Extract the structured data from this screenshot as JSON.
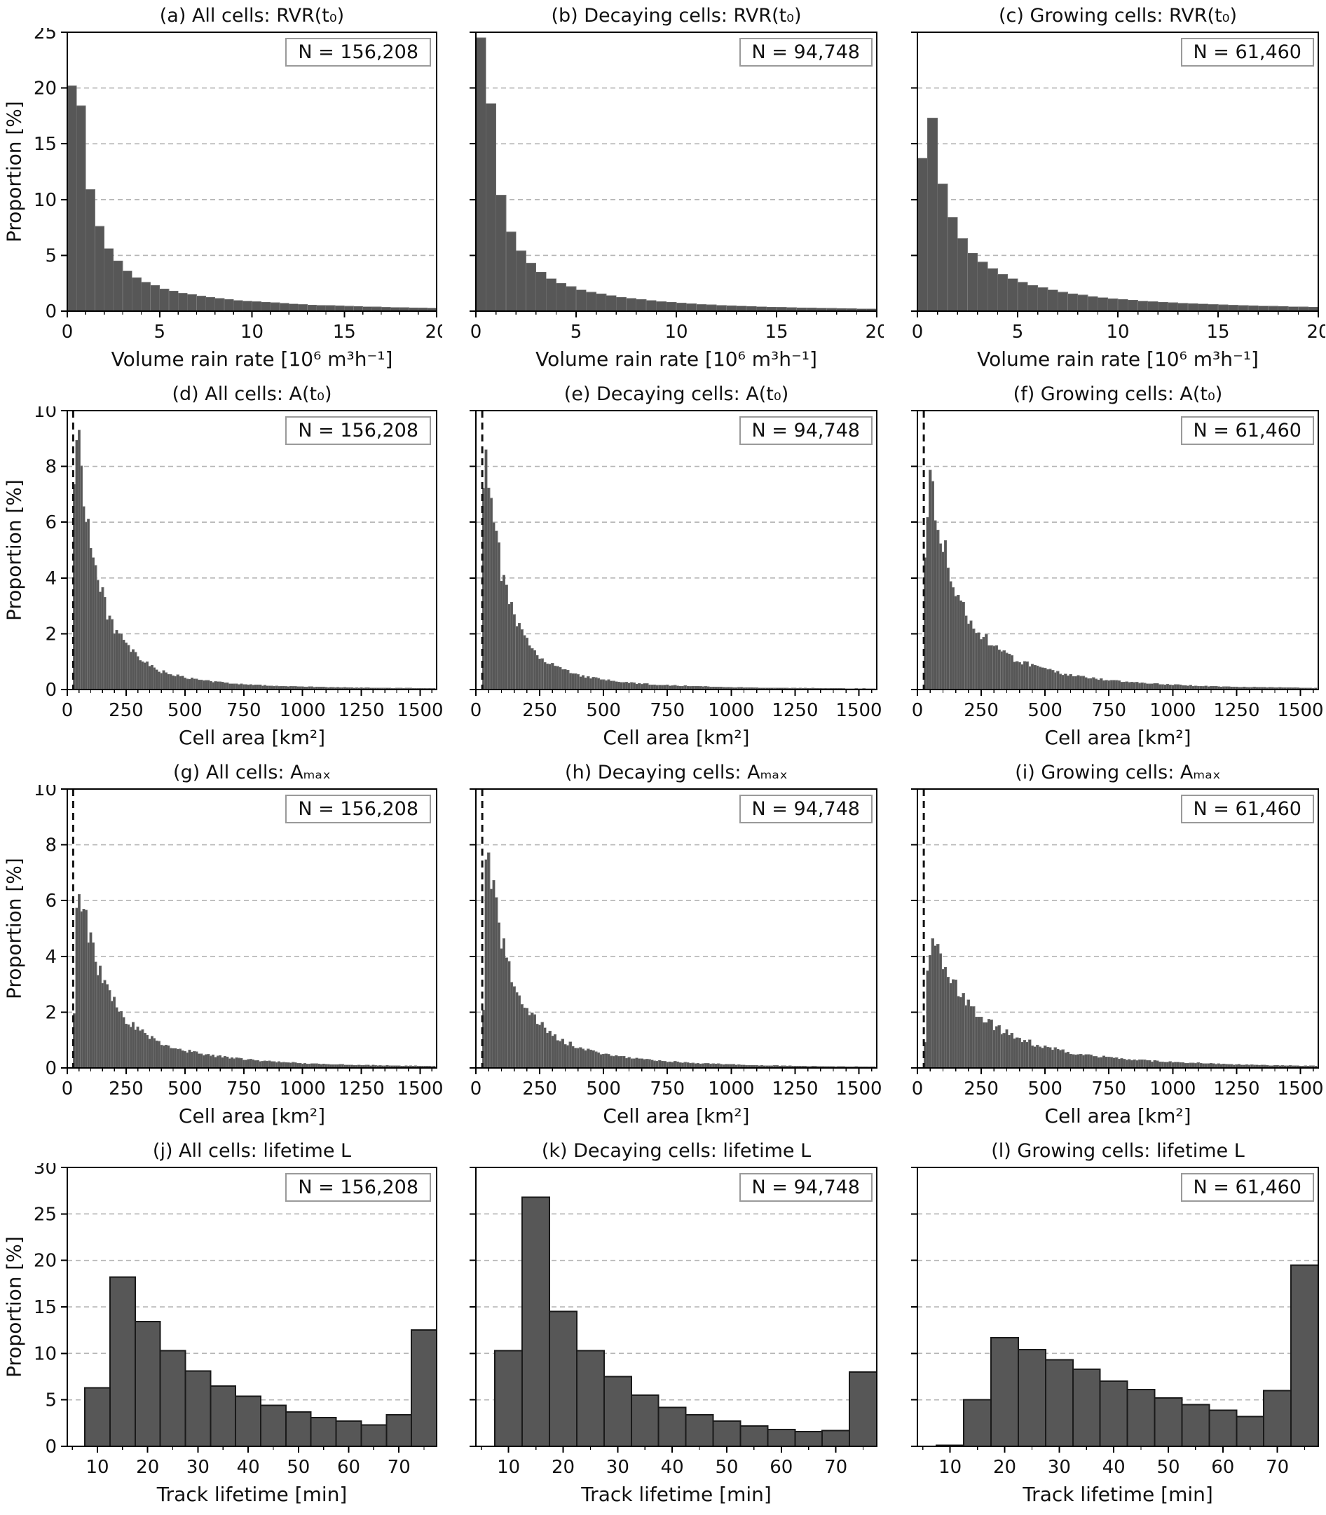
{
  "colors": {
    "bar": "#575757",
    "bar_separator": "#777777",
    "bar_edge": "#1a1a1a",
    "grid": "#b4b4b4",
    "spine": "#000000",
    "vline": "#111111",
    "nbox_border": "#9a9a9a",
    "text": "#111111"
  },
  "chart_data": [
    {
      "id": "a",
      "type": "bar",
      "title": "(a) All cells: RVR(t₀)",
      "n_label": "N = 156,208",
      "xlabel": "Volume rain rate [10⁶ m³h⁻¹]",
      "ylabel": "Proportion [%]",
      "x": {
        "min": 0,
        "max": 20,
        "ticks": [
          0,
          5,
          10,
          15,
          20
        ],
        "minor": 1
      },
      "y": {
        "min": 0,
        "max": 25,
        "ticks": [
          0,
          5,
          10,
          15,
          20,
          25
        ],
        "grid": [
          5,
          10,
          15,
          20
        ]
      },
      "bins": {
        "start": 0,
        "width": 0.5
      },
      "values": [
        20.2,
        18.4,
        10.9,
        7.6,
        5.6,
        4.5,
        3.6,
        3.0,
        2.6,
        2.3,
        2.0,
        1.8,
        1.6,
        1.5,
        1.35,
        1.25,
        1.15,
        1.05,
        0.95,
        0.9,
        0.85,
        0.8,
        0.75,
        0.7,
        0.65,
        0.6,
        0.55,
        0.52,
        0.5,
        0.47,
        0.44,
        0.42,
        0.4,
        0.38,
        0.35,
        0.33,
        0.31,
        0.3,
        0.28,
        0.27
      ],
      "vline": null,
      "bar_edges": false
    },
    {
      "id": "b",
      "type": "bar",
      "title": "(b) Decaying cells: RVR(t₀)",
      "n_label": "N = 94,748",
      "xlabel": "Volume rain rate [10⁶ m³h⁻¹]",
      "ylabel": "",
      "x": {
        "min": 0,
        "max": 20,
        "ticks": [
          0,
          5,
          10,
          15,
          20
        ],
        "minor": 1
      },
      "y": {
        "min": 0,
        "max": 25,
        "ticks": [
          0,
          5,
          10,
          15,
          20,
          25
        ],
        "grid": [
          5,
          10,
          15,
          20
        ]
      },
      "bins": {
        "start": 0,
        "width": 0.5
      },
      "values": [
        24.5,
        18.6,
        10.4,
        7.1,
        5.4,
        4.3,
        3.5,
        2.9,
        2.5,
        2.2,
        1.9,
        1.7,
        1.55,
        1.4,
        1.25,
        1.15,
        1.05,
        0.95,
        0.85,
        0.8,
        0.72,
        0.66,
        0.6,
        0.56,
        0.52,
        0.48,
        0.45,
        0.42,
        0.4,
        0.37,
        0.34,
        0.32,
        0.3,
        0.28,
        0.26,
        0.25,
        0.23,
        0.22,
        0.21,
        0.2
      ],
      "vline": null,
      "bar_edges": false
    },
    {
      "id": "c",
      "type": "bar",
      "title": "(c) Growing cells: RVR(t₀)",
      "n_label": "N = 61,460",
      "xlabel": "Volume rain rate [10⁶ m³h⁻¹]",
      "ylabel": "",
      "x": {
        "min": 0,
        "max": 20,
        "ticks": [
          0,
          5,
          10,
          15,
          20
        ],
        "minor": 1
      },
      "y": {
        "min": 0,
        "max": 25,
        "ticks": [
          0,
          5,
          10,
          15,
          20,
          25
        ],
        "grid": [
          5,
          10,
          15,
          20
        ]
      },
      "bins": {
        "start": 0,
        "width": 0.5
      },
      "values": [
        13.7,
        17.3,
        11.4,
        8.4,
        6.5,
        5.2,
        4.4,
        3.8,
        3.3,
        2.9,
        2.6,
        2.3,
        2.1,
        1.9,
        1.7,
        1.55,
        1.45,
        1.3,
        1.2,
        1.12,
        1.05,
        0.98,
        0.9,
        0.85,
        0.8,
        0.75,
        0.7,
        0.67,
        0.64,
        0.6,
        0.57,
        0.54,
        0.5,
        0.48,
        0.46,
        0.44,
        0.42,
        0.4,
        0.38,
        0.37
      ],
      "vline": null,
      "bar_edges": false
    },
    {
      "id": "d",
      "type": "bar",
      "title": "(d) All cells: A(t₀)",
      "n_label": "N = 156,208",
      "xlabel": "Cell area [km²]",
      "ylabel": "Proportion [%]",
      "x": {
        "min": 0,
        "max": 1570,
        "ticks": [
          0,
          250,
          500,
          750,
          1000,
          1250,
          1500
        ],
        "minor": 50
      },
      "y": {
        "min": 0,
        "max": 10,
        "ticks": [
          0,
          2,
          4,
          6,
          8,
          10
        ],
        "grid": [
          2,
          4,
          6,
          8
        ]
      },
      "bins": {
        "start": 25,
        "width": 10
      },
      "anchors": [
        [
          30,
          7.2
        ],
        [
          40,
          9.3
        ],
        [
          50,
          8.8
        ],
        [
          60,
          8.0
        ],
        [
          75,
          6.9
        ],
        [
          90,
          5.9
        ],
        [
          100,
          5.3
        ],
        [
          125,
          4.1
        ],
        [
          150,
          3.3
        ],
        [
          175,
          2.7
        ],
        [
          200,
          2.2
        ],
        [
          250,
          1.55
        ],
        [
          300,
          1.15
        ],
        [
          350,
          0.85
        ],
        [
          400,
          0.65
        ],
        [
          450,
          0.52
        ],
        [
          500,
          0.42
        ],
        [
          600,
          0.3
        ],
        [
          700,
          0.22
        ],
        [
          800,
          0.16
        ],
        [
          900,
          0.12
        ],
        [
          1000,
          0.1
        ],
        [
          1100,
          0.08
        ],
        [
          1250,
          0.06
        ],
        [
          1400,
          0.05
        ],
        [
          1570,
          0.04
        ]
      ],
      "vline": 25,
      "bar_edges": false
    },
    {
      "id": "e",
      "type": "bar",
      "title": "(e) Decaying cells: A(t₀)",
      "n_label": "N = 94,748",
      "xlabel": "Cell area [km²]",
      "ylabel": "",
      "x": {
        "min": 0,
        "max": 1570,
        "ticks": [
          0,
          250,
          500,
          750,
          1000,
          1250,
          1500
        ],
        "minor": 50
      },
      "y": {
        "min": 0,
        "max": 10,
        "ticks": [
          0,
          2,
          4,
          6,
          8,
          10
        ],
        "grid": [
          2,
          4,
          6,
          8
        ]
      },
      "bins": {
        "start": 25,
        "width": 10
      },
      "anchors": [
        [
          30,
          7.8
        ],
        [
          40,
          8.7
        ],
        [
          50,
          7.9
        ],
        [
          60,
          7.0
        ],
        [
          75,
          5.8
        ],
        [
          90,
          4.8
        ],
        [
          100,
          4.3
        ],
        [
          125,
          3.3
        ],
        [
          150,
          2.6
        ],
        [
          175,
          2.1
        ],
        [
          200,
          1.7
        ],
        [
          250,
          1.2
        ],
        [
          300,
          0.9
        ],
        [
          350,
          0.68
        ],
        [
          400,
          0.52
        ],
        [
          450,
          0.42
        ],
        [
          500,
          0.34
        ],
        [
          600,
          0.24
        ],
        [
          700,
          0.17
        ],
        [
          800,
          0.13
        ],
        [
          900,
          0.1
        ],
        [
          1000,
          0.08
        ],
        [
          1100,
          0.06
        ],
        [
          1250,
          0.05
        ],
        [
          1400,
          0.04
        ],
        [
          1570,
          0.03
        ]
      ],
      "vline": 25,
      "bar_edges": false
    },
    {
      "id": "f",
      "type": "bar",
      "title": "(f) Growing cells: A(t₀)",
      "n_label": "N = 61,460",
      "xlabel": "Cell area [km²]",
      "ylabel": "",
      "x": {
        "min": 0,
        "max": 1570,
        "ticks": [
          0,
          250,
          500,
          750,
          1000,
          1250,
          1500
        ],
        "minor": 50
      },
      "y": {
        "min": 0,
        "max": 10,
        "ticks": [
          0,
          2,
          4,
          6,
          8,
          10
        ],
        "grid": [
          2,
          4,
          6,
          8
        ]
      },
      "bins": {
        "start": 25,
        "width": 10
      },
      "anchors": [
        [
          30,
          4.6
        ],
        [
          40,
          6.6
        ],
        [
          50,
          7.8
        ],
        [
          60,
          7.3
        ],
        [
          75,
          6.5
        ],
        [
          90,
          5.8
        ],
        [
          100,
          5.3
        ],
        [
          125,
          4.3
        ],
        [
          150,
          3.6
        ],
        [
          175,
          3.0
        ],
        [
          200,
          2.6
        ],
        [
          250,
          1.95
        ],
        [
          300,
          1.55
        ],
        [
          350,
          1.25
        ],
        [
          400,
          1.0
        ],
        [
          450,
          0.85
        ],
        [
          500,
          0.7
        ],
        [
          600,
          0.5
        ],
        [
          700,
          0.38
        ],
        [
          800,
          0.28
        ],
        [
          900,
          0.22
        ],
        [
          1000,
          0.17
        ],
        [
          1100,
          0.13
        ],
        [
          1250,
          0.09
        ],
        [
          1400,
          0.07
        ],
        [
          1570,
          0.05
        ]
      ],
      "vline": 25,
      "bar_edges": false
    },
    {
      "id": "g",
      "type": "bar",
      "title": "(g) All cells: Aₘₐₓ",
      "n_label": "N = 156,208",
      "xlabel": "Cell area [km²]",
      "ylabel": "Proportion [%]",
      "x": {
        "min": 0,
        "max": 1570,
        "ticks": [
          0,
          250,
          500,
          750,
          1000,
          1250,
          1500
        ],
        "minor": 50
      },
      "y": {
        "min": 0,
        "max": 10,
        "ticks": [
          0,
          2,
          4,
          6,
          8,
          10
        ],
        "grid": [
          2,
          4,
          6,
          8
        ]
      },
      "bins": {
        "start": 25,
        "width": 10
      },
      "anchors": [
        [
          30,
          1.8
        ],
        [
          40,
          5.3
        ],
        [
          50,
          6.3
        ],
        [
          60,
          6.0
        ],
        [
          75,
          5.4
        ],
        [
          90,
          4.8
        ],
        [
          100,
          4.4
        ],
        [
          125,
          3.7
        ],
        [
          150,
          3.1
        ],
        [
          175,
          2.65
        ],
        [
          200,
          2.3
        ],
        [
          250,
          1.75
        ],
        [
          300,
          1.4
        ],
        [
          350,
          1.12
        ],
        [
          400,
          0.9
        ],
        [
          450,
          0.75
        ],
        [
          500,
          0.63
        ],
        [
          600,
          0.46
        ],
        [
          700,
          0.35
        ],
        [
          800,
          0.27
        ],
        [
          900,
          0.21
        ],
        [
          1000,
          0.16
        ],
        [
          1100,
          0.13
        ],
        [
          1250,
          0.1
        ],
        [
          1400,
          0.08
        ],
        [
          1570,
          0.06
        ]
      ],
      "vline": 25,
      "bar_edges": false
    },
    {
      "id": "h",
      "type": "bar",
      "title": "(h) Decaying cells: Aₘₐₓ",
      "n_label": "N = 94,748",
      "xlabel": "Cell area [km²]",
      "ylabel": "",
      "x": {
        "min": 0,
        "max": 1570,
        "ticks": [
          0,
          250,
          500,
          750,
          1000,
          1250,
          1500
        ],
        "minor": 50
      },
      "y": {
        "min": 0,
        "max": 10,
        "ticks": [
          0,
          2,
          4,
          6,
          8,
          10
        ],
        "grid": [
          2,
          4,
          6,
          8
        ]
      },
      "bins": {
        "start": 25,
        "width": 10
      },
      "anchors": [
        [
          30,
          2.2
        ],
        [
          40,
          7.0
        ],
        [
          50,
          7.5
        ],
        [
          60,
          6.6
        ],
        [
          75,
          5.8
        ],
        [
          90,
          5.0
        ],
        [
          100,
          4.6
        ],
        [
          125,
          3.7
        ],
        [
          150,
          3.0
        ],
        [
          175,
          2.5
        ],
        [
          200,
          2.1
        ],
        [
          250,
          1.55
        ],
        [
          300,
          1.2
        ],
        [
          350,
          0.92
        ],
        [
          400,
          0.73
        ],
        [
          450,
          0.6
        ],
        [
          500,
          0.5
        ],
        [
          600,
          0.36
        ],
        [
          700,
          0.27
        ],
        [
          800,
          0.2
        ],
        [
          900,
          0.15
        ],
        [
          1000,
          0.12
        ],
        [
          1100,
          0.09
        ],
        [
          1250,
          0.07
        ],
        [
          1400,
          0.05
        ],
        [
          1570,
          0.04
        ]
      ],
      "vline": 25,
      "bar_edges": false
    },
    {
      "id": "i",
      "type": "bar",
      "title": "(i) Growing cells: Aₘₐₓ",
      "n_label": "N = 61,460",
      "xlabel": "Cell area [km²]",
      "ylabel": "",
      "x": {
        "min": 0,
        "max": 1570,
        "ticks": [
          0,
          250,
          500,
          750,
          1000,
          1250,
          1500
        ],
        "minor": 50
      },
      "y": {
        "min": 0,
        "max": 10,
        "ticks": [
          0,
          2,
          4,
          6,
          8,
          10
        ],
        "grid": [
          2,
          4,
          6,
          8
        ]
      },
      "bins": {
        "start": 25,
        "width": 10
      },
      "anchors": [
        [
          30,
          1.0
        ],
        [
          40,
          3.3
        ],
        [
          50,
          4.0
        ],
        [
          60,
          4.3
        ],
        [
          75,
          4.25
        ],
        [
          90,
          3.9
        ],
        [
          100,
          3.7
        ],
        [
          125,
          3.3
        ],
        [
          150,
          2.95
        ],
        [
          175,
          2.6
        ],
        [
          200,
          2.3
        ],
        [
          250,
          1.85
        ],
        [
          300,
          1.5
        ],
        [
          350,
          1.25
        ],
        [
          400,
          1.05
        ],
        [
          450,
          0.88
        ],
        [
          500,
          0.74
        ],
        [
          600,
          0.55
        ],
        [
          700,
          0.42
        ],
        [
          800,
          0.33
        ],
        [
          900,
          0.26
        ],
        [
          1000,
          0.21
        ],
        [
          1100,
          0.17
        ],
        [
          1250,
          0.12
        ],
        [
          1400,
          0.09
        ],
        [
          1570,
          0.07
        ]
      ],
      "vline": 25,
      "bar_edges": false
    },
    {
      "id": "j",
      "type": "bar",
      "title": "(j) All cells: lifetime L",
      "n_label": "N = 156,208",
      "xlabel": "Track lifetime [min]",
      "ylabel": "Proportion [%]",
      "x": {
        "min": 4,
        "max": 77.5,
        "ticks": [
          10,
          20,
          30,
          40,
          50,
          60,
          70
        ],
        "minor": 5
      },
      "y": {
        "min": 0,
        "max": 30,
        "ticks": [
          0,
          5,
          10,
          15,
          20,
          25,
          30
        ],
        "grid": [
          5,
          10,
          15,
          20,
          25
        ]
      },
      "bins": {
        "start": 7.5,
        "width": 5
      },
      "values": [
        6.3,
        18.2,
        13.4,
        10.3,
        8.1,
        6.5,
        5.4,
        4.4,
        3.7,
        3.1,
        2.7,
        2.3,
        3.4,
        12.5
      ],
      "vline": null,
      "bar_edges": true
    },
    {
      "id": "k",
      "type": "bar",
      "title": "(k) Decaying cells: lifetime L",
      "n_label": "N = 94,748",
      "xlabel": "Track lifetime [min]",
      "ylabel": "",
      "x": {
        "min": 4,
        "max": 77.5,
        "ticks": [
          10,
          20,
          30,
          40,
          50,
          60,
          70
        ],
        "minor": 5
      },
      "y": {
        "min": 0,
        "max": 30,
        "ticks": [
          0,
          5,
          10,
          15,
          20,
          25,
          30
        ],
        "grid": [
          5,
          10,
          15,
          20,
          25
        ]
      },
      "bins": {
        "start": 7.5,
        "width": 5
      },
      "values": [
        10.3,
        26.8,
        14.5,
        10.3,
        7.5,
        5.5,
        4.2,
        3.4,
        2.7,
        2.2,
        1.8,
        1.6,
        1.7,
        8.0
      ],
      "vline": null,
      "bar_edges": true
    },
    {
      "id": "l",
      "type": "bar",
      "title": "(l) Growing cells: lifetime L",
      "n_label": "N = 61,460",
      "xlabel": "Track lifetime [min]",
      "ylabel": "",
      "x": {
        "min": 4,
        "max": 77.5,
        "ticks": [
          10,
          20,
          30,
          40,
          50,
          60,
          70
        ],
        "minor": 5
      },
      "y": {
        "min": 0,
        "max": 30,
        "ticks": [
          0,
          5,
          10,
          15,
          20,
          25,
          30
        ],
        "grid": [
          5,
          10,
          15,
          20,
          25
        ]
      },
      "bins": {
        "start": 7.5,
        "width": 5
      },
      "values": [
        0.1,
        5.0,
        11.7,
        10.4,
        9.3,
        8.3,
        7.0,
        6.1,
        5.2,
        4.5,
        3.9,
        3.2,
        6.0,
        19.5
      ],
      "vline": null,
      "bar_edges": true
    }
  ]
}
